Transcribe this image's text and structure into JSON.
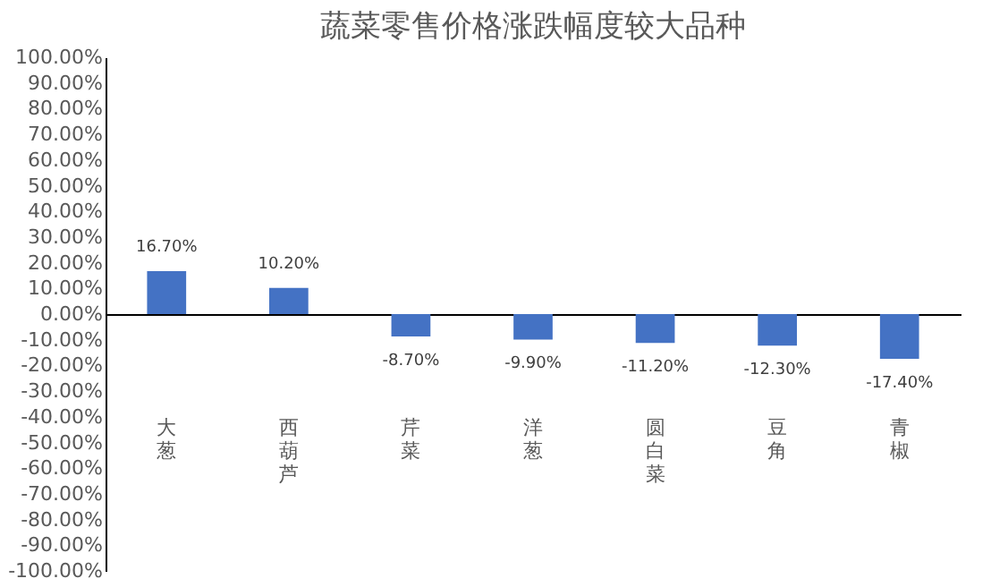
{
  "chart_data": {
    "type": "bar",
    "title": "蔬菜零售价格涨跌幅度较大品种",
    "categories": [
      "大葱",
      "西葫芦",
      "芹菜",
      "洋葱",
      "圆白菜",
      "豆角",
      "青椒"
    ],
    "values": [
      16.7,
      10.2,
      -8.7,
      -9.9,
      -11.2,
      -12.3,
      -17.4
    ],
    "value_labels": [
      "16.70%",
      "10.20%",
      "-8.70%",
      "-9.90%",
      "-11.20%",
      "-12.30%",
      "-17.40%"
    ],
    "color": "#4472c4",
    "ylim": [
      -100,
      100
    ],
    "yticks": [
      {
        "value": -100,
        "label": "-100.00%"
      },
      {
        "value": -90,
        "label": "-90.00%"
      },
      {
        "value": -80,
        "label": "-80.00%"
      },
      {
        "value": -70,
        "label": "-70.00%"
      },
      {
        "value": -60,
        "label": "-60.00%"
      },
      {
        "value": -50,
        "label": "-50.00%"
      },
      {
        "value": -40,
        "label": "-40.00%"
      },
      {
        "value": -30,
        "label": "-30.00%"
      },
      {
        "value": -20,
        "label": "-20.00%"
      },
      {
        "value": -10,
        "label": "-10.00%"
      },
      {
        "value": 0,
        "label": "0.00%"
      },
      {
        "value": 10,
        "label": "10.00%"
      },
      {
        "value": 20,
        "label": "20.00%"
      },
      {
        "value": 30,
        "label": "30.00%"
      },
      {
        "value": 40,
        "label": "40.00%"
      },
      {
        "value": 50,
        "label": "50.00%"
      },
      {
        "value": 60,
        "label": "60.00%"
      },
      {
        "value": 70,
        "label": "70.00%"
      },
      {
        "value": 80,
        "label": "80.00%"
      },
      {
        "value": 90,
        "label": "90.00%"
      },
      {
        "value": 100,
        "label": "100.00%"
      }
    ]
  }
}
